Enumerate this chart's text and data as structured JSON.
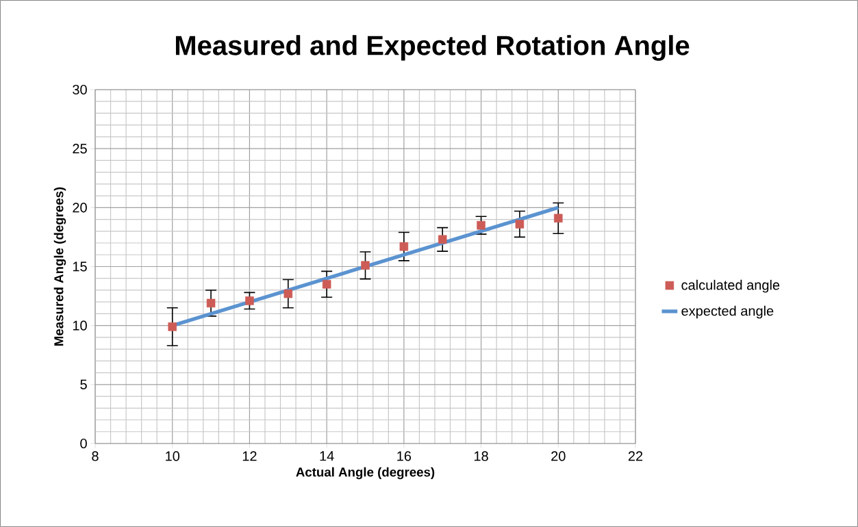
{
  "chart_data": {
    "type": "scatter",
    "title": "Measured and Expected Rotation Angle",
    "xlabel": "Actual Angle (degrees)",
    "ylabel": "Measured Angle (degrees)",
    "series": [
      {
        "name": "calculated angle",
        "type": "scatter",
        "color": "#cd5c57",
        "marker": "square",
        "x": [
          10,
          11,
          12,
          13,
          14,
          15,
          16,
          17,
          18,
          19,
          20
        ],
        "values": [
          9.9,
          11.9,
          12.1,
          12.7,
          13.5,
          15.1,
          16.7,
          17.3,
          18.5,
          18.6,
          19.1
        ],
        "errors": [
          1.6,
          1.1,
          0.7,
          1.2,
          1.1,
          1.15,
          1.2,
          1.0,
          0.75,
          1.1,
          1.3
        ]
      },
      {
        "name": "expected angle",
        "type": "line",
        "color": "#5b93d0",
        "marker": "none",
        "line_style": "solid",
        "x": [
          10,
          20
        ],
        "values": [
          10,
          20
        ]
      }
    ],
    "xlim": [
      8,
      22
    ],
    "ylim": [
      0,
      30
    ],
    "xticks": [
      8,
      10,
      12,
      14,
      16,
      18,
      20,
      22
    ],
    "yticks": [
      0,
      5,
      10,
      15,
      20,
      25,
      30
    ],
    "grid": true,
    "legend": "right"
  }
}
